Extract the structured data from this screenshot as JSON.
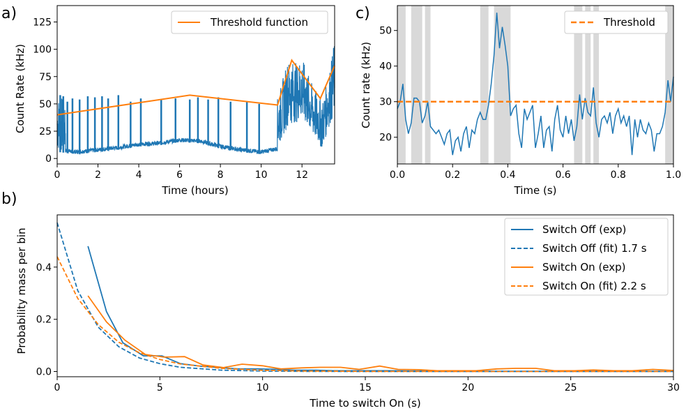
{
  "chart_data": [
    {
      "panel": "a)",
      "type": "line",
      "xlabel": "Time (hours)",
      "ylabel": "Count Rate (kHz)",
      "xlim": [
        0,
        13.6
      ],
      "ylim": [
        -5,
        140
      ],
      "xticks": [
        "0",
        "2",
        "4",
        "6",
        "8",
        "10",
        "12"
      ],
      "yticks": [
        "0",
        "25",
        "50",
        "75",
        "100",
        "125"
      ],
      "legend_position": "top-right",
      "series": [
        {
          "name": "",
          "color": "#1f77b4",
          "style": "dense-trace",
          "baseline": [
            [
              0,
              6
            ],
            [
              1,
              4
            ],
            [
              2,
              6
            ],
            [
              3,
              8
            ],
            [
              4,
              11
            ],
            [
              5,
              12
            ],
            [
              6,
              15
            ],
            [
              7,
              14
            ],
            [
              8,
              9
            ],
            [
              9,
              6
            ],
            [
              10,
              4
            ],
            [
              10.8,
              7
            ],
            [
              11.3,
              30
            ],
            [
              12,
              35
            ],
            [
              12.5,
              20
            ],
            [
              13,
              8
            ],
            [
              13.3,
              28
            ],
            [
              13.6,
              38
            ]
          ],
          "envelope_top": [
            [
              0,
              57
            ],
            [
              1,
              54
            ],
            [
              2,
              55
            ],
            [
              3,
              58
            ],
            [
              4,
              55
            ],
            [
              5,
              54
            ],
            [
              6,
              55
            ],
            [
              7,
              55
            ],
            [
              8,
              52
            ],
            [
              9,
              52
            ],
            [
              10,
              50
            ],
            [
              10.8,
              55
            ],
            [
              11.3,
              90
            ],
            [
              11.7,
              88
            ],
            [
              12,
              92
            ],
            [
              12.5,
              68
            ],
            [
              13,
              52
            ],
            [
              13.4,
              85
            ],
            [
              13.55,
              105
            ]
          ],
          "spikes": [
            [
              0.15,
              58
            ],
            [
              0.3,
              57
            ],
            [
              0.5,
              52
            ],
            [
              0.75,
              55
            ],
            [
              1.1,
              54
            ],
            [
              1.5,
              57
            ],
            [
              1.85,
              56
            ],
            [
              2.2,
              57
            ],
            [
              2.5,
              55
            ],
            [
              3.0,
              58
            ],
            [
              3.6,
              52
            ],
            [
              4.1,
              55
            ],
            [
              5.1,
              54
            ],
            [
              5.8,
              55
            ],
            [
              6.5,
              54
            ],
            [
              6.9,
              56
            ],
            [
              7.4,
              54
            ],
            [
              7.9,
              56
            ],
            [
              8.5,
              52
            ],
            [
              9.3,
              52
            ],
            [
              9.9,
              50
            ]
          ]
        },
        {
          "name": "Threshold function",
          "color": "#ff7f0e",
          "x": [
            0,
            6.5,
            10.8,
            11.5,
            12.9,
            13.6
          ],
          "y": [
            40,
            58,
            49,
            90,
            55,
            85
          ]
        }
      ]
    },
    {
      "panel": "c)",
      "type": "line",
      "xlabel": "Time (s)",
      "ylabel": "Count rate (kHz)",
      "xlim": [
        0,
        1
      ],
      "ylim": [
        12.5,
        57
      ],
      "xticks": [
        "0.0",
        "0.2",
        "0.4",
        "0.6",
        "0.8",
        "1.0"
      ],
      "yticks": [
        "20",
        "30",
        "40",
        "50"
      ],
      "legend_position": "top-right",
      "shaded_intervals": [
        [
          0.0,
          0.03
        ],
        [
          0.05,
          0.09
        ],
        [
          0.1,
          0.12
        ],
        [
          0.3,
          0.33
        ],
        [
          0.35,
          0.41
        ],
        [
          0.64,
          0.67
        ],
        [
          0.68,
          0.7
        ],
        [
          0.71,
          0.73
        ],
        [
          0.97,
          1.0
        ]
      ],
      "series": [
        {
          "name": "",
          "color": "#1f77b4",
          "x": [
            0.0,
            0.01,
            0.02,
            0.03,
            0.04,
            0.05,
            0.06,
            0.07,
            0.08,
            0.09,
            0.1,
            0.11,
            0.12,
            0.13,
            0.14,
            0.15,
            0.16,
            0.17,
            0.18,
            0.19,
            0.2,
            0.21,
            0.22,
            0.23,
            0.24,
            0.25,
            0.26,
            0.27,
            0.28,
            0.29,
            0.3,
            0.31,
            0.32,
            0.33,
            0.34,
            0.35,
            0.36,
            0.37,
            0.38,
            0.39,
            0.4,
            0.41,
            0.42,
            0.43,
            0.44,
            0.45,
            0.46,
            0.47,
            0.48,
            0.49,
            0.5,
            0.51,
            0.52,
            0.53,
            0.54,
            0.55,
            0.56,
            0.57,
            0.58,
            0.59,
            0.6,
            0.61,
            0.62,
            0.63,
            0.64,
            0.65,
            0.66,
            0.67,
            0.68,
            0.69,
            0.7,
            0.71,
            0.72,
            0.73,
            0.74,
            0.75,
            0.76,
            0.77,
            0.78,
            0.79,
            0.8,
            0.81,
            0.82,
            0.83,
            0.84,
            0.85,
            0.86,
            0.87,
            0.88,
            0.89,
            0.9,
            0.91,
            0.92,
            0.93,
            0.94,
            0.95,
            0.96,
            0.97,
            0.98,
            0.99,
            1.0
          ],
          "y": [
            28,
            30,
            35,
            25,
            21,
            24,
            31,
            31,
            30,
            24,
            26,
            30,
            23,
            22,
            21,
            22,
            20,
            18,
            21,
            22,
            15,
            19,
            20,
            16,
            21,
            23,
            17,
            22,
            21,
            25,
            27,
            25,
            25,
            29,
            35,
            43,
            55,
            45,
            51,
            46,
            40,
            26,
            28,
            29,
            21,
            17,
            28,
            25,
            27,
            29,
            17,
            21,
            26,
            17,
            22,
            23,
            16,
            25,
            29,
            22,
            20,
            26,
            21,
            25,
            19,
            23,
            32,
            25,
            31,
            27,
            26,
            34,
            24,
            20,
            25,
            26,
            24,
            27,
            21,
            26,
            28,
            24,
            26,
            23,
            26,
            15,
            25,
            20,
            25,
            22,
            21,
            24,
            22,
            16,
            21,
            21,
            23,
            27,
            36,
            30,
            37
          ]
        },
        {
          "name": "Threshold",
          "color": "#ff7f0e",
          "style": "dashed",
          "x": [
            0,
            1
          ],
          "y": [
            30,
            30
          ]
        }
      ]
    },
    {
      "panel": "b)",
      "type": "line",
      "xlabel": "Time to switch On (s)",
      "ylabel": "Probability mass per bin",
      "xlim": [
        0,
        30
      ],
      "ylim": [
        -0.02,
        0.6
      ],
      "xticks": [
        "0",
        "5",
        "10",
        "15",
        "20",
        "25",
        "30"
      ],
      "yticks": [
        "0.0",
        "0.2",
        "0.4"
      ],
      "legend_position": "top-right",
      "series": [
        {
          "name": "Switch Off (exp)",
          "color": "#1f77b4",
          "style": "solid",
          "x": [
            1.5,
            2.4,
            3.2,
            4.2,
            5.1,
            6.0,
            7.0,
            7.9,
            8.8,
            9.8,
            10.7,
            11.6,
            12.6,
            13.5,
            14.4,
            15.4,
            16.3,
            17.2,
            18.2,
            19.1,
            20.0,
            21.0,
            21.9,
            22.8,
            23.8,
            24.7,
            25.6,
            26.6,
            27.5,
            28.4,
            29.4,
            30.0
          ],
          "y": [
            0.48,
            0.23,
            0.11,
            0.06,
            0.06,
            0.03,
            0.02,
            0.015,
            0.01,
            0.01,
            0.008,
            0.005,
            0.005,
            0.003,
            0.003,
            0.003,
            0.003,
            0.002,
            0.002,
            0.001,
            0.001,
            0.001,
            0.001,
            0.001,
            0.001,
            0.001,
            0.001,
            0.001,
            0.001,
            0.001,
            0.001,
            0.001
          ]
        },
        {
          "name": "Switch Off (fit) 1.7 s",
          "color": "#1f77b4",
          "style": "dashed",
          "x": [
            0,
            1,
            2,
            3,
            4,
            5,
            6,
            8,
            10,
            12,
            15,
            20,
            25,
            30
          ],
          "y": [
            0.57,
            0.31,
            0.17,
            0.095,
            0.052,
            0.03,
            0.016,
            0.005,
            0.002,
            0.0006,
            0.0001,
            0,
            0,
            0
          ]
        },
        {
          "name": "Switch On (exp)",
          "color": "#ff7f0e",
          "style": "solid",
          "x": [
            1.5,
            2.4,
            3.3,
            4.3,
            5.2,
            6.2,
            7.1,
            8.1,
            9.0,
            10.0,
            10.9,
            11.9,
            12.8,
            13.8,
            14.7,
            15.7,
            16.6,
            17.6,
            18.5,
            19.5,
            20.4,
            21.4,
            22.3,
            23.3,
            24.2,
            25.2,
            26.1,
            27.1,
            28.0,
            29.0,
            30.0
          ],
          "y": [
            0.29,
            0.19,
            0.12,
            0.065,
            0.055,
            0.057,
            0.025,
            0.015,
            0.028,
            0.022,
            0.01,
            0.014,
            0.016,
            0.016,
            0.008,
            0.021,
            0.008,
            0.007,
            0.003,
            0.003,
            0.003,
            0.01,
            0.012,
            0.012,
            0.003,
            0.003,
            0.006,
            0.003,
            0.003,
            0.008,
            0.004
          ]
        },
        {
          "name": "Switch On (fit) 2.2 s",
          "color": "#ff7f0e",
          "style": "dashed",
          "x": [
            0,
            1,
            2,
            3,
            4,
            5,
            6,
            8,
            10,
            12,
            15,
            20,
            25,
            30
          ],
          "y": [
            0.44,
            0.28,
            0.18,
            0.112,
            0.072,
            0.046,
            0.029,
            0.012,
            0.0047,
            0.0019,
            0.0005,
            0,
            0,
            0
          ]
        }
      ]
    }
  ]
}
